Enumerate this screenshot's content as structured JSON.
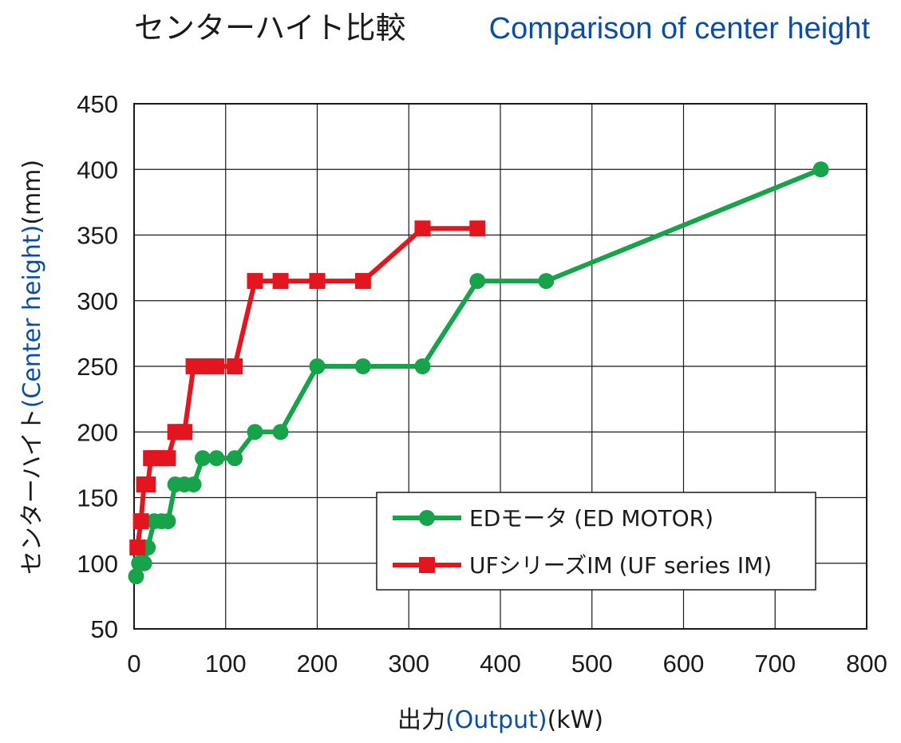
{
  "colors": {
    "accent_blue": "#0a4ea3",
    "text": "#1a1a1a",
    "grid": "#1a1a1a",
    "ed_series": "#17a34a",
    "uf_series": "#e3151f"
  },
  "title": {
    "jp": "センターハイト比較",
    "en": "Comparison of center height"
  },
  "axes": {
    "x_label": {
      "jp": "出力",
      "en": "(Output)",
      "unit": "(kW)"
    },
    "y_label": {
      "jp": "センターハイト",
      "en": "(Center height)",
      "unit": "(mm)"
    }
  },
  "legend": {
    "ed": {
      "jp": "EDモータ",
      "en": "(ED MOTOR)"
    },
    "uf": {
      "jp": "UFシリーズIM",
      "en": "(UF series IM)"
    }
  },
  "chart_data": {
    "type": "line",
    "xlim": [
      0,
      800
    ],
    "ylim": [
      50,
      450
    ],
    "x_ticks": [
      0,
      100,
      200,
      300,
      400,
      500,
      600,
      700,
      800
    ],
    "y_ticks": [
      50,
      100,
      150,
      200,
      250,
      300,
      350,
      400,
      450
    ],
    "x_tick_labels": [
      "0",
      "100",
      "200",
      "300",
      "400",
      "500",
      "600",
      "700",
      "800"
    ],
    "y_tick_labels": [
      "50",
      "100",
      "150",
      "200",
      "250",
      "300",
      "350",
      "400",
      "450"
    ],
    "grid": true,
    "legend_position": "lower-right",
    "series": [
      {
        "key": "ed",
        "marker": "circle",
        "points": [
          [
            2.2,
            90
          ],
          [
            5.5,
            100
          ],
          [
            11,
            100
          ],
          [
            15,
            112
          ],
          [
            22,
            132
          ],
          [
            30,
            132
          ],
          [
            37,
            132
          ],
          [
            45,
            160
          ],
          [
            55,
            160
          ],
          [
            65,
            160
          ],
          [
            75,
            180
          ],
          [
            90,
            180
          ],
          [
            110,
            180
          ],
          [
            132,
            200
          ],
          [
            160,
            200
          ],
          [
            200,
            250
          ],
          [
            250,
            250
          ],
          [
            315,
            250
          ],
          [
            375,
            315
          ],
          [
            450,
            315
          ],
          [
            750,
            400
          ]
        ]
      },
      {
        "key": "uf",
        "marker": "square",
        "points": [
          [
            3.7,
            112
          ],
          [
            7.5,
            132
          ],
          [
            11,
            160
          ],
          [
            15,
            160
          ],
          [
            18.5,
            180
          ],
          [
            22,
            180
          ],
          [
            30,
            180
          ],
          [
            37,
            180
          ],
          [
            45,
            200
          ],
          [
            55,
            200
          ],
          [
            65,
            250
          ],
          [
            75,
            250
          ],
          [
            90,
            250
          ],
          [
            110,
            250
          ],
          [
            132,
            315
          ],
          [
            160,
            315
          ],
          [
            200,
            315
          ],
          [
            250,
            315
          ],
          [
            315,
            355
          ],
          [
            375,
            355
          ]
        ]
      }
    ]
  }
}
